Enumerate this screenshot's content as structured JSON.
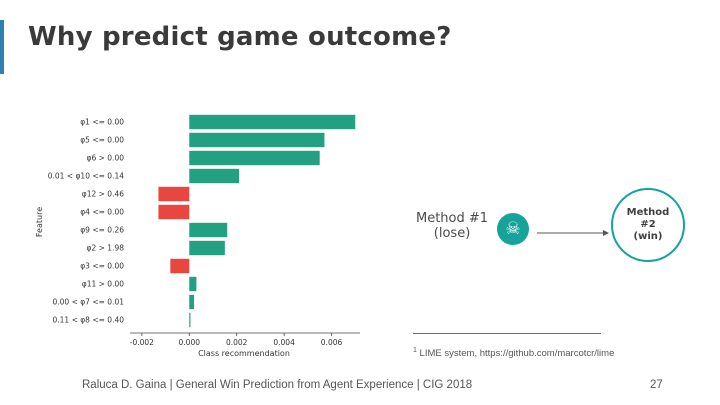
{
  "slide": {
    "title": "Why predict game outcome?",
    "footer": "Raluca D. Gaina | General Win Prediction from Agent Experience | CIG 2018",
    "page_number": "27",
    "footnote": {
      "marker": "1",
      "text": "LIME system, https://github.com/marcotcr/lime"
    }
  },
  "methods": {
    "method1_line1": "Method #1",
    "method1_line2": "(lose)",
    "method1_icon": "skull-icon",
    "method2_line1": "Method",
    "method2_line2": "#2",
    "method2_line3": "(win)"
  },
  "colors": {
    "positive": "#22a07f",
    "negative": "#e8473f",
    "accent": "#2f7fb5",
    "teal": "#16a39a"
  },
  "chart_data": {
    "type": "bar",
    "orientation": "horizontal",
    "xlabel": "Class recommendation",
    "ylabel": "Feature",
    "xlim": [
      -0.0025,
      0.0072
    ],
    "xticks": [
      "-0.002",
      "0.000",
      "0.002",
      "0.004",
      "0.006"
    ],
    "xtick_values": [
      -0.002,
      0.0,
      0.002,
      0.004,
      0.006
    ],
    "categories": [
      "φ1 <= 0.00",
      "φ5 <= 0.00",
      "φ6 > 0.00",
      "0.01 < φ10 <= 0.14",
      "φ12 > 0.46",
      "φ4 <= 0.00",
      "φ9 <= 0.26",
      "φ2 > 1.98",
      "φ3 <= 0.00",
      "φ11 > 0.00",
      "0.00 < φ7 <= 0.01",
      "0.11 < φ8 <= 0.40"
    ],
    "values": [
      0.007,
      0.0057,
      0.0055,
      0.0021,
      -0.0013,
      -0.0013,
      0.0016,
      0.0015,
      -0.0008,
      0.0003,
      0.0002,
      5e-05
    ]
  }
}
